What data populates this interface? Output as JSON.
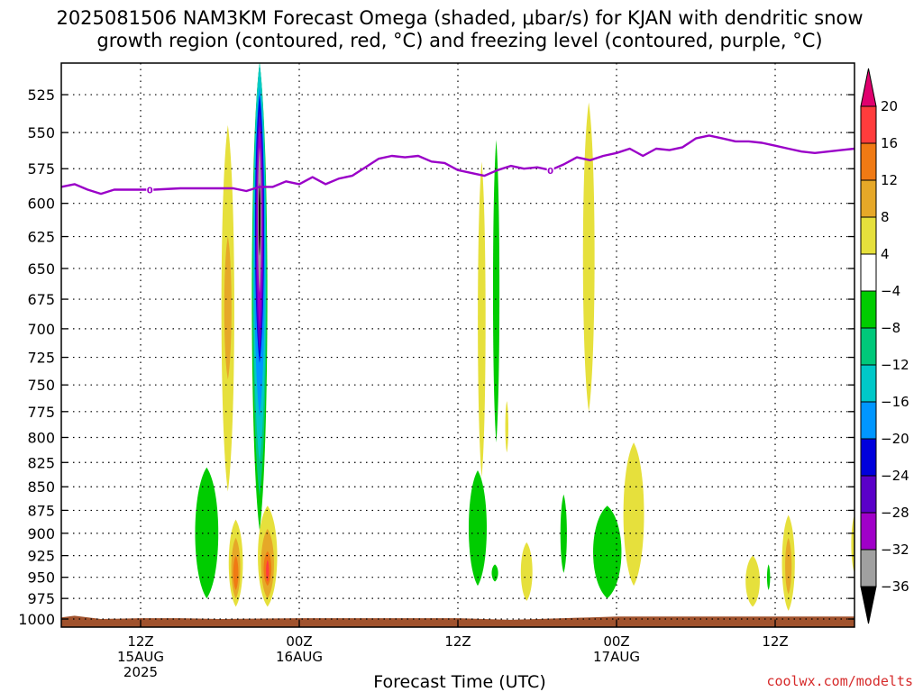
{
  "chart_data": {
    "type": "heatmap",
    "title_line1": "2025081506 NAM3KM Forecast Omega (shaded, μbar/s) for KJAN with dendritic snow",
    "title_line2": "growth region (contoured, red, °C) and freezing level (contoured, purple, °C)",
    "xlabel": "Forecast Time (UTC)",
    "credit": "coolwx.com/modelts",
    "xlim_hours": [
      6,
      66
    ],
    "ylim_hPa": [
      505,
      1010
    ],
    "y_ticks": [
      525,
      550,
      575,
      600,
      625,
      650,
      675,
      700,
      725,
      750,
      775,
      800,
      825,
      850,
      875,
      900,
      925,
      950,
      975,
      1000
    ],
    "x_ticks": [
      {
        "hour": 12,
        "lines": [
          "12Z",
          "15AUG",
          "2025"
        ]
      },
      {
        "hour": 24,
        "lines": [
          "00Z",
          "16AUG"
        ]
      },
      {
        "hour": 36,
        "lines": [
          "12Z"
        ]
      },
      {
        "hour": 48,
        "lines": [
          "00Z",
          "17AUG"
        ]
      },
      {
        "hour": 60,
        "lines": [
          "12Z"
        ]
      }
    ],
    "grid": true,
    "colorbar": {
      "levels": [
        "20",
        "16",
        "12",
        "8",
        "4",
        "−4",
        "−8",
        "−12",
        "−16",
        "−20",
        "−24",
        "−28",
        "−32",
        "−36"
      ],
      "colors": {
        "above_20": "#e0006e",
        "16_20": "#ff3c3c",
        "12_16": "#f07a14",
        "8_12": "#e6a828",
        "4_8": "#e6e03c",
        "neutral": "#ffffff",
        "m8_m4": "#00cc00",
        "m12_m8": "#00c87a",
        "m16_m12": "#00c8c8",
        "m20_m16": "#0096ff",
        "m24_m20": "#0000dc",
        "m28_m24": "#5a00c8",
        "m32_m28": "#a000c8",
        "m36_m32": "#a0a0a0",
        "below_m36": "#000000"
      }
    },
    "freezing_level": {
      "label": "0",
      "color": "#9a00c8",
      "hour": [
        6.0,
        7.0,
        8.0,
        9.0,
        10.0,
        11.0,
        13.0,
        15.0,
        17.0,
        19.0,
        20.0,
        21.0,
        22.0,
        23.0,
        24.0,
        25.0,
        26.0,
        27.0,
        28.0,
        29.0,
        30.0,
        31.0,
        32.0,
        33.0,
        34.0,
        35.0,
        36.0,
        37.0,
        38.0,
        39.0,
        40.0,
        41.0,
        42.0,
        43.0,
        44.0,
        45.0,
        46.0,
        47.0,
        48.0,
        49.0,
        50.0,
        51.0,
        52.0,
        53.0,
        54.0,
        55.0,
        56.0,
        57.0,
        58.0,
        59.0,
        60.0,
        61.0,
        62.0,
        63.0,
        64.0,
        65.0,
        66.0
      ],
      "pressure_hPa": [
        588,
        586,
        590,
        593,
        590,
        590,
        590,
        589,
        589,
        589,
        591,
        588,
        588,
        584,
        586,
        581,
        586,
        582,
        580,
        574,
        568,
        566,
        567,
        566,
        570,
        571,
        576,
        578,
        580,
        576,
        573,
        575,
        574,
        576,
        572,
        567,
        569,
        566,
        564,
        561,
        566,
        561,
        562,
        560,
        554,
        552,
        554,
        556,
        556,
        557,
        559,
        561,
        563,
        564,
        563,
        562,
        561
      ],
      "label_hours": [
        12.7,
        43.0
      ]
    },
    "shaded_features": [
      {
        "bin": "4_8",
        "hour": 18.6,
        "p_top": 545,
        "p_bot": 855,
        "half_width_h": 0.5
      },
      {
        "bin": "8_12",
        "hour": 18.6,
        "p_top": 625,
        "p_bot": 745,
        "half_width_h": 0.28
      },
      {
        "bin": "m8_m4",
        "hour": 21.0,
        "p_top": 505,
        "p_bot": 897,
        "half_width_h": 0.6
      },
      {
        "bin": "m12_m8",
        "hour": 21.0,
        "p_top": 505,
        "p_bot": 860,
        "half_width_h": 0.55
      },
      {
        "bin": "m16_m12",
        "hour": 21.0,
        "p_top": 505,
        "p_bot": 825,
        "half_width_h": 0.5
      },
      {
        "bin": "m20_m16",
        "hour": 21.0,
        "p_top": 520,
        "p_bot": 780,
        "half_width_h": 0.42
      },
      {
        "bin": "m24_m20",
        "hour": 21.0,
        "p_top": 525,
        "p_bot": 730,
        "half_width_h": 0.35
      },
      {
        "bin": "m28_m24",
        "hour": 21.0,
        "p_top": 535,
        "p_bot": 720,
        "half_width_h": 0.3
      },
      {
        "bin": "m32_m28",
        "hour": 21.0,
        "p_top": 545,
        "p_bot": 700,
        "half_width_h": 0.23
      },
      {
        "bin": "m36_m32",
        "hour": 21.0,
        "p_top": 560,
        "p_bot": 670,
        "half_width_h": 0.14
      },
      {
        "bin": "below_m36",
        "hour": 21.0,
        "p_top": 585,
        "p_bot": 640,
        "half_width_h": 0.07
      },
      {
        "bin": "m8_m4",
        "hour": 17.0,
        "p_top": 830,
        "p_bot": 975,
        "half_width_h": 0.9
      },
      {
        "bin": "4_8",
        "hour": 19.2,
        "p_top": 885,
        "p_bot": 985,
        "half_width_h": 0.55
      },
      {
        "bin": "8_12",
        "hour": 19.2,
        "p_top": 905,
        "p_bot": 975,
        "half_width_h": 0.35
      },
      {
        "bin": "12_16",
        "hour": 19.2,
        "p_top": 925,
        "p_bot": 965,
        "half_width_h": 0.2
      },
      {
        "bin": "4_8",
        "hour": 21.6,
        "p_top": 870,
        "p_bot": 985,
        "half_width_h": 0.75
      },
      {
        "bin": "8_12",
        "hour": 21.6,
        "p_top": 895,
        "p_bot": 975,
        "half_width_h": 0.5
      },
      {
        "bin": "12_16",
        "hour": 21.6,
        "p_top": 920,
        "p_bot": 960,
        "half_width_h": 0.3
      },
      {
        "bin": "16_20",
        "hour": 21.6,
        "p_top": 930,
        "p_bot": 955,
        "half_width_h": 0.12
      },
      {
        "bin": "4_8",
        "hour": 37.8,
        "p_top": 570,
        "p_bot": 840,
        "half_width_h": 0.3
      },
      {
        "bin": "m8_m4",
        "hour": 38.9,
        "p_top": 555,
        "p_bot": 805,
        "half_width_h": 0.25
      },
      {
        "bin": "4_8",
        "hour": 39.7,
        "p_top": 765,
        "p_bot": 815,
        "half_width_h": 0.12
      },
      {
        "bin": "4_8",
        "hour": 45.9,
        "p_top": 530,
        "p_bot": 775,
        "half_width_h": 0.45
      },
      {
        "bin": "m8_m4",
        "hour": 37.5,
        "p_top": 833,
        "p_bot": 960,
        "half_width_h": 0.7
      },
      {
        "bin": "m8_m4",
        "hour": 38.8,
        "p_top": 935,
        "p_bot": 955,
        "half_width_h": 0.25
      },
      {
        "bin": "4_8",
        "hour": 41.2,
        "p_top": 910,
        "p_bot": 978,
        "half_width_h": 0.45
      },
      {
        "bin": "m8_m4",
        "hour": 44.0,
        "p_top": 858,
        "p_bot": 945,
        "half_width_h": 0.25
      },
      {
        "bin": "m8_m4",
        "hour": 47.3,
        "p_top": 870,
        "p_bot": 975,
        "half_width_h": 1.1
      },
      {
        "bin": "4_8",
        "hour": 49.3,
        "p_top": 805,
        "p_bot": 960,
        "half_width_h": 0.8
      },
      {
        "bin": "4_8",
        "hour": 58.3,
        "p_top": 925,
        "p_bot": 985,
        "half_width_h": 0.55
      },
      {
        "bin": "m8_m4",
        "hour": 59.5,
        "p_top": 935,
        "p_bot": 965,
        "half_width_h": 0.12
      },
      {
        "bin": "4_8",
        "hour": 61.0,
        "p_top": 880,
        "p_bot": 990,
        "half_width_h": 0.5
      },
      {
        "bin": "8_12",
        "hour": 61.0,
        "p_top": 905,
        "p_bot": 970,
        "half_width_h": 0.25
      },
      {
        "bin": "4_8",
        "hour": 66.0,
        "p_top": 880,
        "p_bot": 945,
        "half_width_h": 0.25
      }
    ],
    "terrain": {
      "color": "#a0522d",
      "hour": [
        6,
        7,
        9,
        12,
        15,
        18,
        24,
        36,
        40,
        42,
        44,
        46,
        48,
        54,
        60,
        66
      ],
      "pressure_hPa": [
        998,
        996,
        1000,
        999,
        999,
        1000,
        999,
        999,
        1001,
        1000,
        999,
        998,
        997,
        997,
        997,
        997
      ]
    }
  }
}
